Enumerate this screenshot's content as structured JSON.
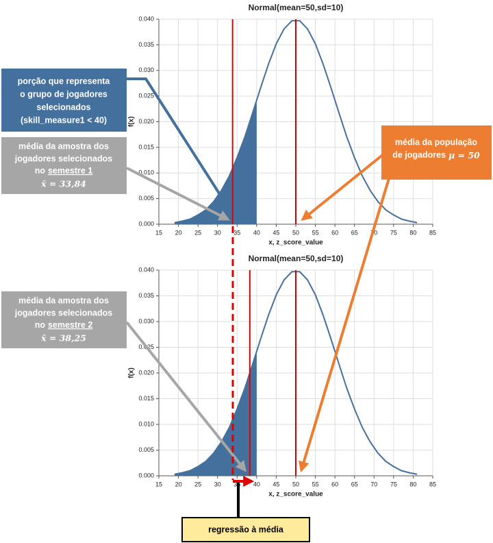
{
  "chart_data": [
    {
      "type": "line",
      "title": "Normal(mean=50,sd=10)",
      "x_label": "x, z_score_value",
      "y_label": "f(x)",
      "xlim": [
        15,
        85
      ],
      "ylim": [
        0,
        0.04
      ],
      "xticks": [
        15,
        20,
        25,
        30,
        35,
        40,
        45,
        50,
        55,
        60,
        65,
        70,
        75,
        80,
        85
      ],
      "yticks": [
        {
          "value": 0,
          "label": "0.000"
        },
        {
          "value": 0.005,
          "label": "0.005"
        },
        {
          "value": 0.01,
          "label": "0.010"
        },
        {
          "value": 0.015,
          "label": "0.015"
        },
        {
          "value": 0.02,
          "label": "0.020"
        },
        {
          "value": 0.025,
          "label": "0.025"
        },
        {
          "value": 0.03,
          "label": "0.030"
        },
        {
          "value": 0.035,
          "label": "0.035"
        },
        {
          "value": 0.04,
          "label": "0.040"
        }
      ],
      "grid": true,
      "series": [
        {
          "color": "#44709d",
          "x": [
            19,
            21,
            23,
            25,
            27,
            29,
            31,
            33,
            35,
            37,
            39,
            41,
            43,
            45,
            47,
            49,
            51,
            53,
            55,
            57,
            59,
            61,
            63,
            65,
            67,
            69,
            71,
            73,
            75,
            77,
            79,
            81
          ],
          "values": [
            0.0003,
            0.0006,
            0.001,
            0.0018,
            0.0028,
            0.0044,
            0.0066,
            0.0094,
            0.013,
            0.0171,
            0.0218,
            0.0266,
            0.0312,
            0.0352,
            0.0381,
            0.0397,
            0.0397,
            0.0381,
            0.0352,
            0.0312,
            0.0266,
            0.0218,
            0.0171,
            0.013,
            0.0094,
            0.0066,
            0.0044,
            0.0028,
            0.0018,
            0.001,
            0.0006,
            0.0003
          ]
        },
        {
          "color": "#44709d",
          "fill": true,
          "x": [
            19,
            21,
            23,
            25,
            27,
            29,
            31,
            33,
            35,
            37,
            39,
            40
          ],
          "values": [
            0.0003,
            0.0006,
            0.001,
            0.0018,
            0.0028,
            0.0044,
            0.0066,
            0.0094,
            0.013,
            0.0171,
            0.0218,
            0.0242
          ]
        }
      ],
      "vlines": [
        {
          "x": 33.84,
          "color": "#e00000"
        },
        {
          "x": 50,
          "color": "#d00000"
        }
      ]
    },
    {
      "type": "line",
      "title": "Normal(mean=50,sd=10)",
      "x_label": "x, z_score_value",
      "y_label": "f(x)",
      "xlim": [
        15,
        85
      ],
      "ylim": [
        0,
        0.04
      ],
      "xticks": [
        15,
        20,
        25,
        30,
        35,
        40,
        45,
        50,
        55,
        60,
        65,
        70,
        75,
        80,
        85
      ],
      "yticks": [
        {
          "value": 0,
          "label": "0.000"
        },
        {
          "value": 0.005,
          "label": "0.005"
        },
        {
          "value": 0.01,
          "label": "0.010"
        },
        {
          "value": 0.015,
          "label": "0.015"
        },
        {
          "value": 0.02,
          "label": "0.020"
        },
        {
          "value": 0.025,
          "label": "0.025"
        },
        {
          "value": 0.03,
          "label": "0.030"
        },
        {
          "value": 0.035,
          "label": "0.035"
        },
        {
          "value": 0.04,
          "label": "0.040"
        }
      ],
      "grid": true,
      "series": [
        {
          "color": "#44709d",
          "x": [
            19,
            21,
            23,
            25,
            27,
            29,
            31,
            33,
            35,
            37,
            39,
            41,
            43,
            45,
            47,
            49,
            51,
            53,
            55,
            57,
            59,
            61,
            63,
            65,
            67,
            69,
            71,
            73,
            75,
            77,
            79,
            81
          ],
          "values": [
            0.0003,
            0.0006,
            0.001,
            0.0018,
            0.0028,
            0.0044,
            0.0066,
            0.0094,
            0.013,
            0.0171,
            0.0218,
            0.0266,
            0.0312,
            0.0352,
            0.0381,
            0.0397,
            0.0397,
            0.0381,
            0.0352,
            0.0312,
            0.0266,
            0.0218,
            0.0171,
            0.013,
            0.0094,
            0.0066,
            0.0044,
            0.0028,
            0.0018,
            0.001,
            0.0006,
            0.0003
          ]
        },
        {
          "color": "#44709d",
          "fill": true,
          "x": [
            19,
            21,
            23,
            25,
            27,
            29,
            31,
            33,
            35,
            37,
            39,
            40
          ],
          "values": [
            0.0003,
            0.0006,
            0.001,
            0.0018,
            0.0028,
            0.0044,
            0.0066,
            0.0094,
            0.013,
            0.0171,
            0.0218,
            0.0242
          ]
        }
      ],
      "vlines": [
        {
          "x": 38.25,
          "color": "#e00000"
        },
        {
          "x": 50,
          "color": "#d00000"
        }
      ]
    }
  ],
  "annotations": {
    "selected_group": {
      "lines": [
        "porção que representa",
        "o grupo de jogadores",
        "selecionados",
        "(skill_measure1 < 40)"
      ]
    },
    "sample_1": {
      "lines": [
        "média da amostra dos",
        "jogadores selecionados"
      ],
      "line3": [
        "no",
        "semestre 1"
      ],
      "formula": "x̄ = 33,84"
    },
    "population_mean": {
      "lines": [
        "média da população"
      ],
      "line2": [
        "de jogadores",
        "μ = 50"
      ]
    },
    "sample_2": {
      "lines": [
        "média da amostra dos",
        "jogadores selecionados"
      ],
      "line3": [
        "no",
        "semestre 2"
      ],
      "formula": "x̄ = 38,25"
    },
    "regression": "regressão à média"
  }
}
